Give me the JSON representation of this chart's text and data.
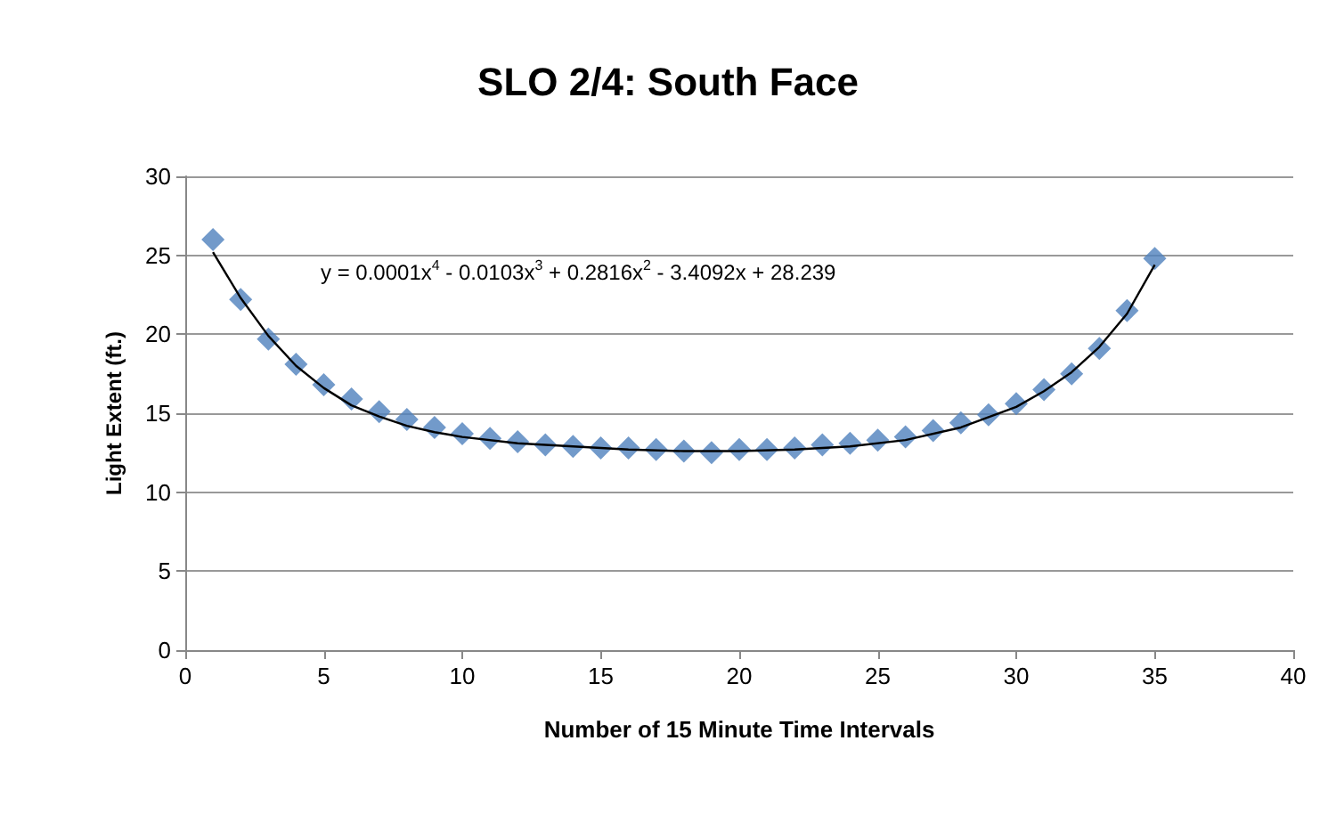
{
  "chart_data": {
    "type": "scatter",
    "title": "SLO 2/4: South Face",
    "xlabel": "Number of 15 Minute Time Intervals",
    "ylabel": "Light Extent (ft.)",
    "annotations": [
      "y = 0.0001x$^{4}$ - 0.0103x$^{3}$ + 0.2816x$^{2}$ - 3.4092x + 28.239"
    ],
    "xlim": [
      0,
      40
    ],
    "xticks": [
      0,
      5,
      10,
      15,
      20,
      25,
      30,
      35,
      40
    ],
    "ylim": [
      0,
      30
    ],
    "yticks": [
      0,
      5,
      10,
      15,
      20,
      25,
      30
    ],
    "grid": "y",
    "marker": "diamond",
    "series": [
      {
        "color": "#4f81bd",
        "x": [
          1,
          2,
          3,
          4,
          5,
          6,
          7,
          8,
          9,
          10,
          11,
          12,
          13,
          14,
          15,
          16,
          17,
          18,
          19,
          20,
          21,
          22,
          23,
          24,
          25,
          26,
          27,
          28,
          29,
          30,
          31,
          32,
          33,
          34,
          35
        ],
        "values": [
          26.0,
          22.2,
          19.7,
          18.1,
          16.8,
          15.9,
          15.1,
          14.6,
          14.1,
          13.7,
          13.4,
          13.2,
          13.0,
          12.9,
          12.8,
          12.8,
          12.7,
          12.6,
          12.5,
          12.7,
          12.7,
          12.8,
          13.0,
          13.1,
          13.3,
          13.5,
          13.9,
          14.4,
          14.9,
          15.6,
          16.5,
          17.5,
          19.1,
          21.5,
          24.8
        ]
      },
      {
        "type": "line",
        "color": "#000000",
        "marker": "none",
        "line_style": "solid",
        "x": [
          1,
          2,
          3,
          4,
          5,
          6,
          7,
          8,
          9,
          10,
          12,
          14,
          16,
          18,
          20,
          22,
          24,
          26,
          28,
          30,
          31,
          32,
          33,
          34,
          35
        ],
        "values": [
          25.2,
          22.3,
          19.9,
          18.0,
          16.6,
          15.5,
          14.8,
          14.2,
          13.8,
          13.5,
          13.1,
          12.9,
          12.7,
          12.6,
          12.6,
          12.7,
          12.9,
          13.3,
          14.1,
          15.4,
          16.4,
          17.6,
          19.2,
          21.3,
          24.4
        ]
      }
    ]
  }
}
